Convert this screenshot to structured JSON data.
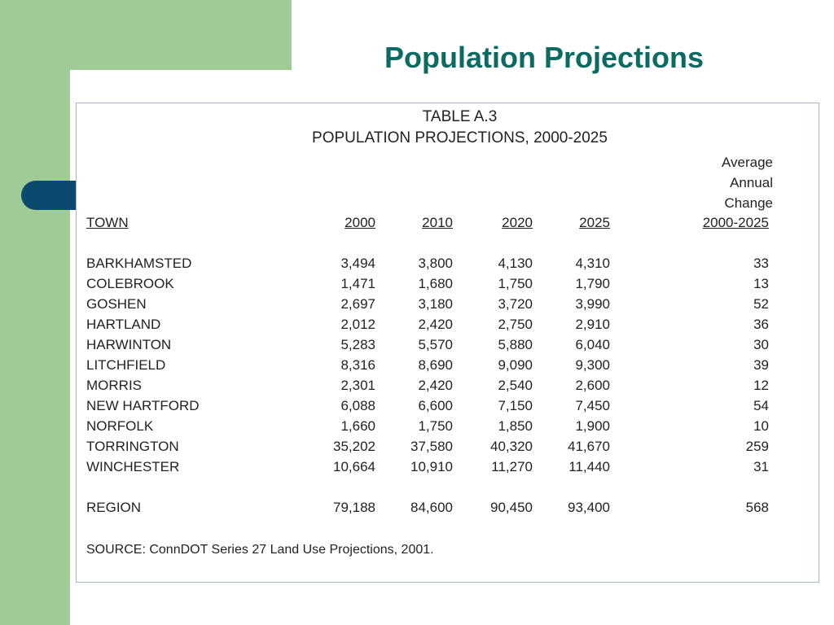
{
  "slide_title": "Population Projections",
  "table": {
    "caption_line1": "TABLE A.3",
    "caption_line2": "POPULATION PROJECTIONS, 2000-2025",
    "avg_header_lines": [
      "Average",
      "Annual",
      "Change"
    ],
    "headers": [
      "TOWN",
      "2000",
      "2010",
      "2020",
      "2025",
      "2000-2025"
    ],
    "rows": [
      [
        "BARKHAMSTED",
        "3,494",
        "3,800",
        "4,130",
        "4,310",
        "33"
      ],
      [
        "COLEBROOK",
        "1,471",
        "1,680",
        "1,750",
        "1,790",
        "13"
      ],
      [
        "GOSHEN",
        "2,697",
        "3,180",
        "3,720",
        "3,990",
        "52"
      ],
      [
        "HARTLAND",
        "2,012",
        "2,420",
        "2,750",
        "2,910",
        "36"
      ],
      [
        "HARWINTON",
        "5,283",
        "5,570",
        "5,880",
        "6,040",
        "30"
      ],
      [
        "LITCHFIELD",
        "8,316",
        "8,690",
        "9,090",
        "9,300",
        "39"
      ],
      [
        "MORRIS",
        "2,301",
        "2,420",
        "2,540",
        "2,600",
        "12"
      ],
      [
        "NEW HARTFORD",
        "6,088",
        "6,600",
        "7,150",
        "7,450",
        "54"
      ],
      [
        "NORFOLK",
        "1,660",
        "1,750",
        "1,850",
        "1,900",
        "10"
      ],
      [
        "TORRINGTON",
        "35,202",
        "37,580",
        "40,320",
        "41,670",
        "259"
      ],
      [
        "WINCHESTER",
        "10,664",
        "10,910",
        "11,270",
        "11,440",
        "31"
      ]
    ],
    "region": [
      "REGION",
      "79,188",
      "84,600",
      "90,450",
      "93,400",
      "568"
    ],
    "source": "SOURCE:  ConnDOT Series 27 Land Use Projections, 2001."
  },
  "colors": {
    "green": "#9ecb96",
    "blue": "#0b4a6e",
    "title_teal": "#0b6b63"
  }
}
